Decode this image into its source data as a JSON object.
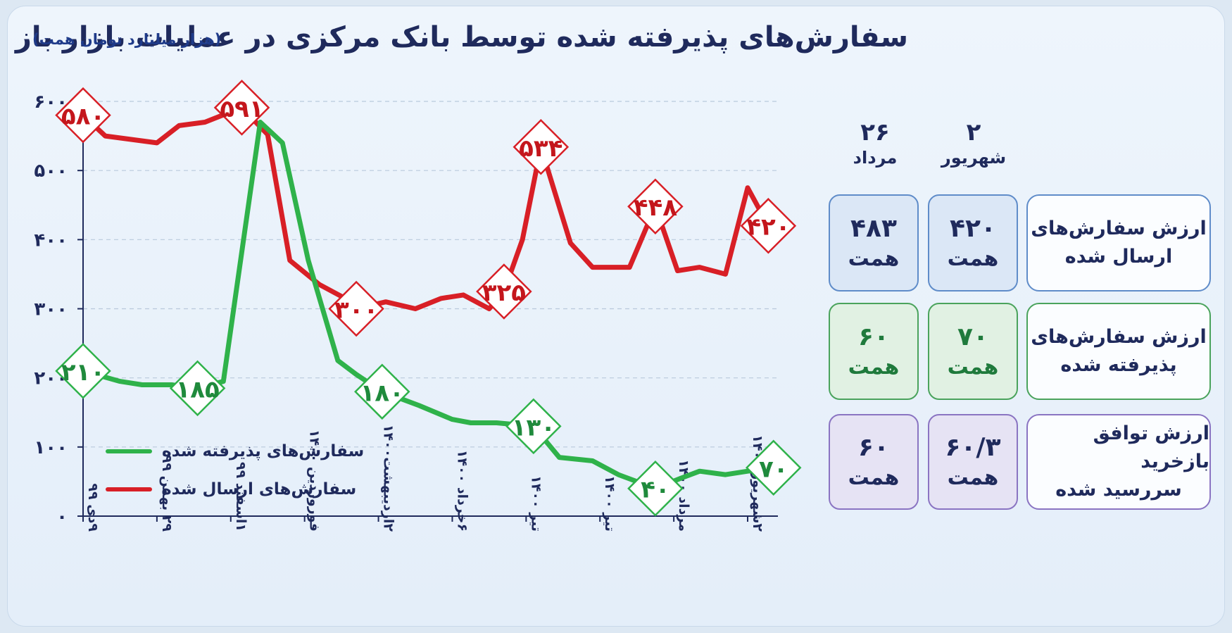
{
  "header": {
    "title": "سفارش‌های پذیرفته شده توسط بانک مرکزی در عملیات بازار باز",
    "unit": "(هزار میلیارد تومان همت)"
  },
  "colors": {
    "accepted": "#2fb24a",
    "submitted": "#d81f26",
    "text": "#1f2a5c"
  },
  "chart_data": {
    "type": "line",
    "ylim": [
      0,
      600
    ],
    "y_ticks": [
      0,
      100,
      200,
      300,
      400,
      500,
      600
    ],
    "y_tick_labels": [
      "۰",
      "۱۰۰",
      "۲۰۰",
      "۳۰۰",
      "۴۰۰",
      "۵۰۰",
      "۶۰۰"
    ],
    "x_tick_labels": [
      "۹دی ۹۹",
      "۲۹ بهمن ۹۹",
      "۱اسفند ۹۹",
      "فوروردین ۱۴۰۰",
      "۲اردیبهشت۱۴۰۰",
      "۶خرداد ۱۴۰۰",
      "تیر ۱۴۰۰",
      "تیر ۱۴۰۰",
      "مرداد ۱۴۰۰",
      "۲شهریور ۱۴۰۰"
    ],
    "x_tick_positions": [
      0,
      1,
      2,
      3,
      4,
      5,
      6,
      7,
      8,
      9
    ],
    "grid": "horizontal-dashed",
    "legend": "bottom-left",
    "series": [
      {
        "name": "سفارش‌های ارسال شده",
        "color": "#d81f26",
        "points": [
          [
            0,
            580
          ],
          [
            0.3,
            550
          ],
          [
            0.65,
            545
          ],
          [
            1.0,
            540
          ],
          [
            1.3,
            565
          ],
          [
            1.65,
            570
          ],
          [
            2.15,
            591
          ],
          [
            2.5,
            552
          ],
          [
            2.8,
            370
          ],
          [
            3.2,
            335
          ],
          [
            3.55,
            315
          ],
          [
            3.7,
            300
          ],
          [
            4.1,
            310
          ],
          [
            4.5,
            300
          ],
          [
            4.85,
            315
          ],
          [
            5.15,
            320
          ],
          [
            5.5,
            300
          ],
          [
            5.7,
            325
          ],
          [
            5.95,
            400
          ],
          [
            6.2,
            534
          ],
          [
            6.6,
            395
          ],
          [
            6.9,
            360
          ],
          [
            7.4,
            360
          ],
          [
            7.75,
            448
          ],
          [
            8.05,
            355
          ],
          [
            8.35,
            360
          ],
          [
            8.7,
            350
          ],
          [
            9.0,
            475
          ],
          [
            9.28,
            420
          ]
        ],
        "labels": [
          [
            0,
            580,
            "۵۸۰"
          ],
          [
            2.15,
            591,
            "۵۹۱"
          ],
          [
            3.7,
            300,
            "۳۰۰"
          ],
          [
            5.7,
            325,
            "۳۲۵"
          ],
          [
            6.2,
            534,
            "۵۳۴"
          ],
          [
            7.75,
            448,
            "۴۴۸"
          ],
          [
            9.28,
            420,
            "۴۲۰"
          ]
        ]
      },
      {
        "name": "سفارش‌های پذیرفته شده",
        "color": "#2fb24a",
        "points": [
          [
            0,
            210
          ],
          [
            0.5,
            195
          ],
          [
            0.8,
            190
          ],
          [
            1.2,
            190
          ],
          [
            1.55,
            185
          ],
          [
            1.9,
            195
          ],
          [
            2.4,
            570
          ],
          [
            2.7,
            540
          ],
          [
            3.05,
            370
          ],
          [
            3.45,
            225
          ],
          [
            3.7,
            205
          ],
          [
            4.05,
            180
          ],
          [
            4.55,
            160
          ],
          [
            5.0,
            140
          ],
          [
            5.25,
            135
          ],
          [
            5.6,
            135
          ],
          [
            6.1,
            130
          ],
          [
            6.45,
            85
          ],
          [
            6.9,
            80
          ],
          [
            7.25,
            60
          ],
          [
            7.75,
            40
          ],
          [
            8.1,
            55
          ],
          [
            8.35,
            65
          ],
          [
            8.7,
            60
          ],
          [
            9.0,
            65
          ],
          [
            9.35,
            70
          ]
        ],
        "labels": [
          [
            0,
            210,
            "۲۱۰"
          ],
          [
            1.55,
            185,
            "۱۸۵"
          ],
          [
            4.05,
            180,
            "۱۸۰"
          ],
          [
            6.1,
            130,
            "۱۳۰"
          ],
          [
            7.75,
            40,
            "۴۰"
          ],
          [
            9.35,
            70,
            "۷۰"
          ]
        ]
      }
    ]
  },
  "table": {
    "columns": [
      {
        "day": "۲",
        "month": "شهریور"
      },
      {
        "day": "۲۶",
        "month": "مرداد"
      }
    ],
    "rows": [
      {
        "label1": "ارزش سفارش‌های",
        "label2": "ارسال شده",
        "c1": "۴۲۰",
        "c2": "۴۸۳",
        "unit": "همت"
      },
      {
        "label1": "ارزش سفارش‌های",
        "label2": "پذیرفته شده",
        "c1": "۷۰",
        "c2": "۶۰",
        "unit": "همت"
      },
      {
        "label1": "ارزش توافق بازخرید",
        "label2": "سررسید شده",
        "c1": "۶۰/۳",
        "c2": "۶۰",
        "unit": "همت"
      }
    ]
  }
}
